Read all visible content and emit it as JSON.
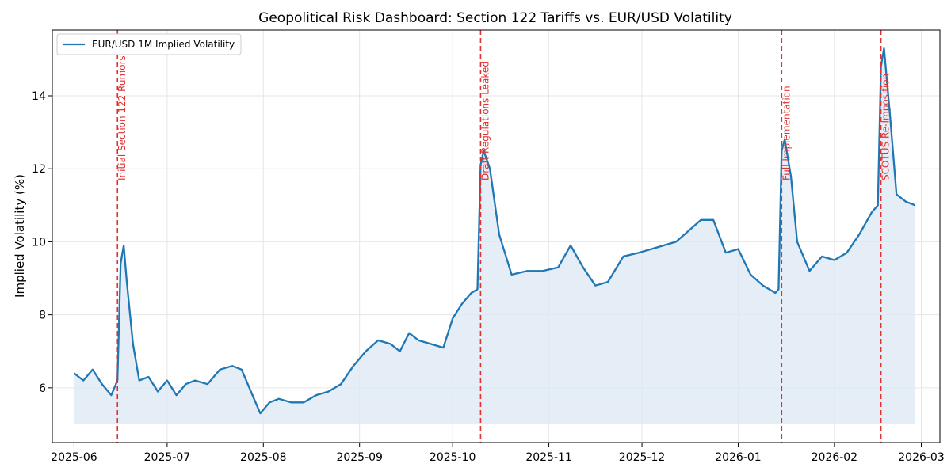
{
  "chart_data": {
    "type": "line",
    "title": "Geopolitical Risk Dashboard: Section 122 Tariffs vs. EUR/USD Volatility",
    "xlabel": "",
    "ylabel": "Implied Volatility (%)",
    "xlim": [
      "2025-05-25",
      "2026-03-07"
    ],
    "ylim": [
      4.5,
      15.8
    ],
    "yticks": [
      6,
      8,
      10,
      12,
      14
    ],
    "xticks": [
      {
        "date": "2025-06-01",
        "label": "2025-06"
      },
      {
        "date": "2025-07-01",
        "label": "2025-07"
      },
      {
        "date": "2025-08-01",
        "label": "2025-08"
      },
      {
        "date": "2025-09-01",
        "label": "2025-09"
      },
      {
        "date": "2025-10-01",
        "label": "2025-10"
      },
      {
        "date": "2025-11-01",
        "label": "2025-11"
      },
      {
        "date": "2025-12-01",
        "label": "2025-12"
      },
      {
        "date": "2026-01-01",
        "label": "2026-01"
      },
      {
        "date": "2026-02-01",
        "label": "2026-02"
      },
      {
        "date": "2026-03-01",
        "label": "2026-03"
      }
    ],
    "grid": true,
    "legend": {
      "position": "top-left",
      "entries": [
        "EUR/USD 1M Implied Volatility"
      ]
    },
    "fill_baseline": 5.0,
    "colors": {
      "line": "#1f77b4",
      "fill": "#dce8f4",
      "event": "#e03030",
      "grid": "#e6e6e6"
    },
    "series": [
      {
        "name": "EUR/USD 1M Implied Volatility",
        "x": [
          "2025-06-01",
          "2025-06-04",
          "2025-06-07",
          "2025-06-10",
          "2025-06-13",
          "2025-06-15",
          "2025-06-16",
          "2025-06-17",
          "2025-06-18",
          "2025-06-20",
          "2025-06-22",
          "2025-06-25",
          "2025-06-28",
          "2025-07-01",
          "2025-07-04",
          "2025-07-07",
          "2025-07-10",
          "2025-07-14",
          "2025-07-18",
          "2025-07-22",
          "2025-07-25",
          "2025-07-28",
          "2025-07-31",
          "2025-08-03",
          "2025-08-06",
          "2025-08-10",
          "2025-08-14",
          "2025-08-18",
          "2025-08-22",
          "2025-08-26",
          "2025-08-30",
          "2025-09-03",
          "2025-09-07",
          "2025-09-11",
          "2025-09-14",
          "2025-09-17",
          "2025-09-20",
          "2025-09-24",
          "2025-09-28",
          "2025-10-01",
          "2025-10-04",
          "2025-10-07",
          "2025-10-09",
          "2025-10-10",
          "2025-10-11",
          "2025-10-13",
          "2025-10-16",
          "2025-10-20",
          "2025-10-25",
          "2025-10-30",
          "2025-11-04",
          "2025-11-08",
          "2025-11-12",
          "2025-11-16",
          "2025-11-20",
          "2025-11-25",
          "2025-11-30",
          "2025-12-04",
          "2025-12-08",
          "2025-12-12",
          "2025-12-16",
          "2025-12-20",
          "2025-12-24",
          "2025-12-28",
          "2026-01-01",
          "2026-01-05",
          "2026-01-09",
          "2026-01-13",
          "2026-01-14",
          "2026-01-15",
          "2026-01-16",
          "2026-01-18",
          "2026-01-20",
          "2026-01-24",
          "2026-01-28",
          "2026-02-01",
          "2026-02-05",
          "2026-02-09",
          "2026-02-13",
          "2026-02-15",
          "2026-02-16",
          "2026-02-17",
          "2026-02-19",
          "2026-02-21",
          "2026-02-24",
          "2026-02-27"
        ],
        "values": [
          6.4,
          6.2,
          6.5,
          6.1,
          5.8,
          6.2,
          9.4,
          9.9,
          8.9,
          7.2,
          6.2,
          6.3,
          5.9,
          6.2,
          5.8,
          6.1,
          6.2,
          6.1,
          6.5,
          6.6,
          6.5,
          5.9,
          5.3,
          5.6,
          5.7,
          5.6,
          5.6,
          5.8,
          5.9,
          6.1,
          6.6,
          7.0,
          7.3,
          7.2,
          7.0,
          7.5,
          7.3,
          7.2,
          7.1,
          7.9,
          8.3,
          8.6,
          8.7,
          12.1,
          12.5,
          12.0,
          10.2,
          9.1,
          9.2,
          9.2,
          9.3,
          9.9,
          9.3,
          8.8,
          8.9,
          9.6,
          9.7,
          9.8,
          9.9,
          10.0,
          10.3,
          10.6,
          10.6,
          9.7,
          9.8,
          9.1,
          8.8,
          8.6,
          8.7,
          12.5,
          12.8,
          11.8,
          10.0,
          9.2,
          9.6,
          9.5,
          9.7,
          10.2,
          10.8,
          11.0,
          14.8,
          15.3,
          13.4,
          11.3,
          11.1,
          11.0
        ]
      }
    ],
    "events": [
      {
        "date": "2025-06-15",
        "label": "Initial Section 122 Rumors"
      },
      {
        "date": "2025-10-10",
        "label": "Draft Regulations Leaked"
      },
      {
        "date": "2026-01-15",
        "label": "Full Implementation"
      },
      {
        "date": "2026-02-16",
        "label": "SCOTUS Re-Imposition"
      }
    ]
  }
}
